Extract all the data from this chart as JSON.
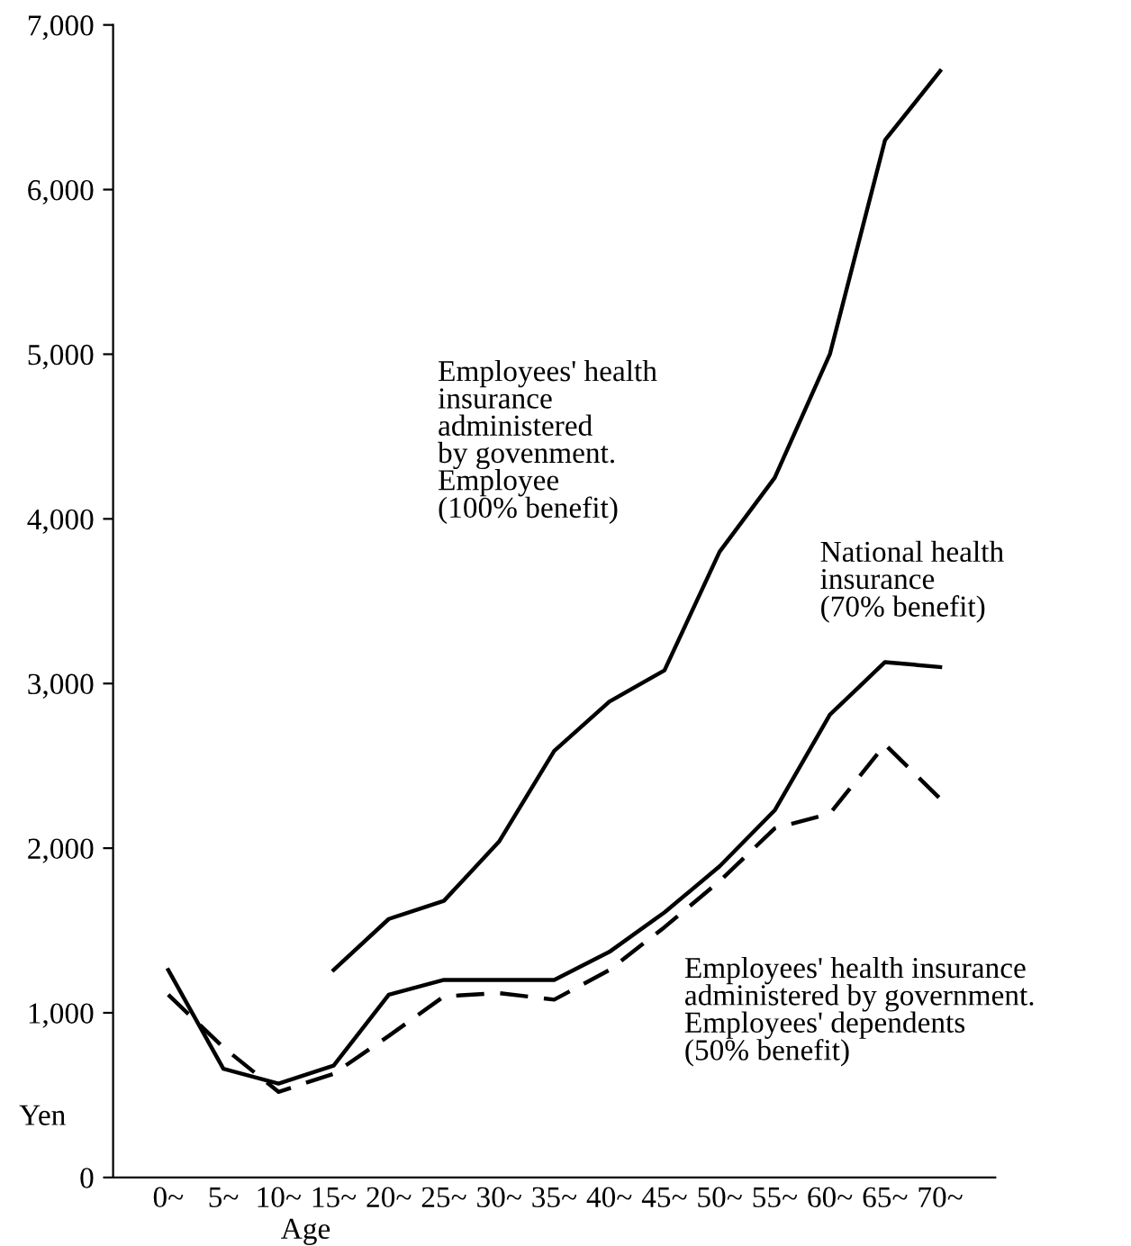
{
  "chart_data": {
    "type": "line",
    "xlabel": "Age",
    "ylabel": "Yen",
    "categories": [
      "0~",
      "5~",
      "10~",
      "15~",
      "20~",
      "25~",
      "30~",
      "35~",
      "40~",
      "45~",
      "50~",
      "55~",
      "60~",
      "65~",
      "70~"
    ],
    "series": [
      {
        "name": "Employees' health\ninsurance\nadministered\nby govenment.\nEmployee\n(100% benefit)",
        "color": "#000000",
        "line_style": "solid",
        "values": [
          null,
          null,
          null,
          1260,
          1570,
          1680,
          2040,
          2590,
          2890,
          3080,
          3800,
          4250,
          5000,
          6300,
          6720
        ]
      },
      {
        "name": "National health\ninsurance\n(70% benefit)",
        "color": "#000000",
        "line_style": "solid",
        "values": [
          1260,
          660,
          570,
          680,
          1110,
          1200,
          1200,
          1200,
          1370,
          1610,
          1890,
          2230,
          2810,
          3130,
          3100
        ]
      },
      {
        "name": "Employees' health insurance\nadministered by government.\nEmployees' dependents\n(50% benefit)",
        "color": "#000000",
        "line_style": "dashed",
        "values": [
          1110,
          790,
          520,
          630,
          860,
          1100,
          1120,
          1080,
          1260,
          1520,
          1800,
          2120,
          2210,
          2630,
          2300
        ]
      }
    ],
    "ylim": [
      0,
      7000
    ],
    "yticks": [
      {
        "value": 0,
        "label": "0"
      },
      {
        "value": 1000,
        "label": "1,000"
      },
      {
        "value": 2000,
        "label": "2,000"
      },
      {
        "value": 3000,
        "label": "3,000"
      },
      {
        "value": 4000,
        "label": "4,000"
      },
      {
        "value": 5000,
        "label": "5,000"
      },
      {
        "value": 6000,
        "label": "6,000"
      },
      {
        "value": 7000,
        "label": "7,000"
      }
    ],
    "grid": false,
    "legend": false,
    "marker": "none"
  }
}
